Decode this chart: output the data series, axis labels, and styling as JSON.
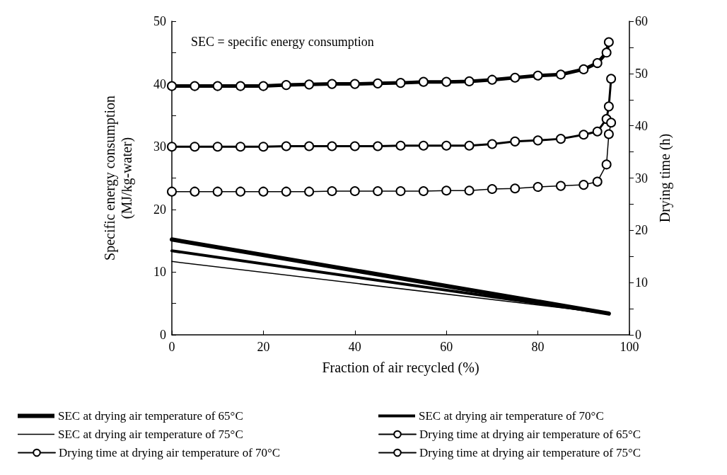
{
  "chart_data": {
    "type": "line",
    "xlabel": "Fraction of air recycled (%)",
    "ylabel": "Specific energy consumption\n(MJ/kg-water)",
    "y2label": "Drying time (h)",
    "annotations": [
      "SEC = specific energy consumption"
    ],
    "xlim": [
      0,
      100
    ],
    "xticks": [
      0,
      20,
      40,
      60,
      80,
      100
    ],
    "ylim": [
      0,
      50
    ],
    "yticks": [
      0,
      {
        "value": 5,
        "label": null
      },
      10,
      {
        "value": 15,
        "label": null
      },
      20,
      {
        "value": 25,
        "label": null
      },
      30,
      {
        "value": 35,
        "label": null
      },
      40,
      {
        "value": 45,
        "label": null
      },
      50
    ],
    "y2lim": [
      0,
      60
    ],
    "y2ticks": [
      0,
      {
        "value": 5,
        "label": null
      },
      10,
      {
        "value": 15,
        "label": null
      },
      20,
      {
        "value": 25,
        "label": null
      },
      30,
      {
        "value": 35,
        "label": null
      },
      40,
      {
        "value": 45,
        "label": null
      },
      50,
      {
        "value": 55,
        "label": null
      },
      60
    ],
    "grid": false,
    "legend": "bottom",
    "marker": "none",
    "line_style": "solid",
    "series": [
      {
        "name": "SEC at drying air temperature of 65°C",
        "color": "#000000",
        "x": [
          0,
          95.5
        ],
        "values": [
          15.2,
          3.4
        ]
      },
      {
        "name": "SEC at drying air temperature of 70°C",
        "color": "#000000",
        "x": [
          0,
          95.5
        ],
        "values": [
          13.4,
          3.4
        ]
      },
      {
        "name": "SEC at drying air temperature of 75°C",
        "color": "#000000",
        "x": [
          0,
          95.5
        ],
        "values": [
          11.7,
          3.4
        ]
      },
      {
        "name": "Drying time at drying air temperature of 65°C",
        "color": "#000000",
        "axis": "y2",
        "marker": "circle",
        "x": [
          0,
          5,
          10,
          15,
          20,
          25,
          30,
          35,
          40,
          45,
          50,
          55,
          60,
          65,
          70,
          75,
          80,
          85,
          90,
          93,
          95,
          95.5
        ],
        "values": [
          47.6,
          47.6,
          47.6,
          47.6,
          47.6,
          47.8,
          47.9,
          48.0,
          48.0,
          48.1,
          48.2,
          48.4,
          48.4,
          48.5,
          48.8,
          49.2,
          49.6,
          49.8,
          50.8,
          52.0,
          54.0,
          56.0
        ]
      },
      {
        "name": "Drying time at drying air temperature of 70°C",
        "color": "#000000",
        "axis": "y2",
        "marker": "circle",
        "x": [
          0,
          5,
          10,
          15,
          20,
          25,
          30,
          35,
          40,
          45,
          50,
          55,
          60,
          65,
          70,
          75,
          80,
          85,
          90,
          93,
          95,
          95.5,
          96
        ],
        "values": [
          36.0,
          36.0,
          36.0,
          36.0,
          36.0,
          36.1,
          36.1,
          36.1,
          36.1,
          36.1,
          36.2,
          36.2,
          36.2,
          36.2,
          36.5,
          37.0,
          37.2,
          37.5,
          38.3,
          38.9,
          41.3,
          43.7,
          49.0
        ]
      },
      {
        "name": "Drying time at drying air temperature of 75°C",
        "color": "#000000",
        "axis": "y2",
        "marker": "circle",
        "x": [
          0,
          5,
          10,
          15,
          20,
          25,
          30,
          35,
          40,
          45,
          50,
          55,
          60,
          65,
          70,
          75,
          80,
          85,
          90,
          93,
          95,
          95.5,
          96
        ],
        "values": [
          27.4,
          27.4,
          27.4,
          27.4,
          27.4,
          27.4,
          27.4,
          27.5,
          27.5,
          27.5,
          27.5,
          27.5,
          27.6,
          27.6,
          27.9,
          28.0,
          28.3,
          28.5,
          28.7,
          29.3,
          32.6,
          38.4,
          40.6
        ]
      }
    ]
  }
}
